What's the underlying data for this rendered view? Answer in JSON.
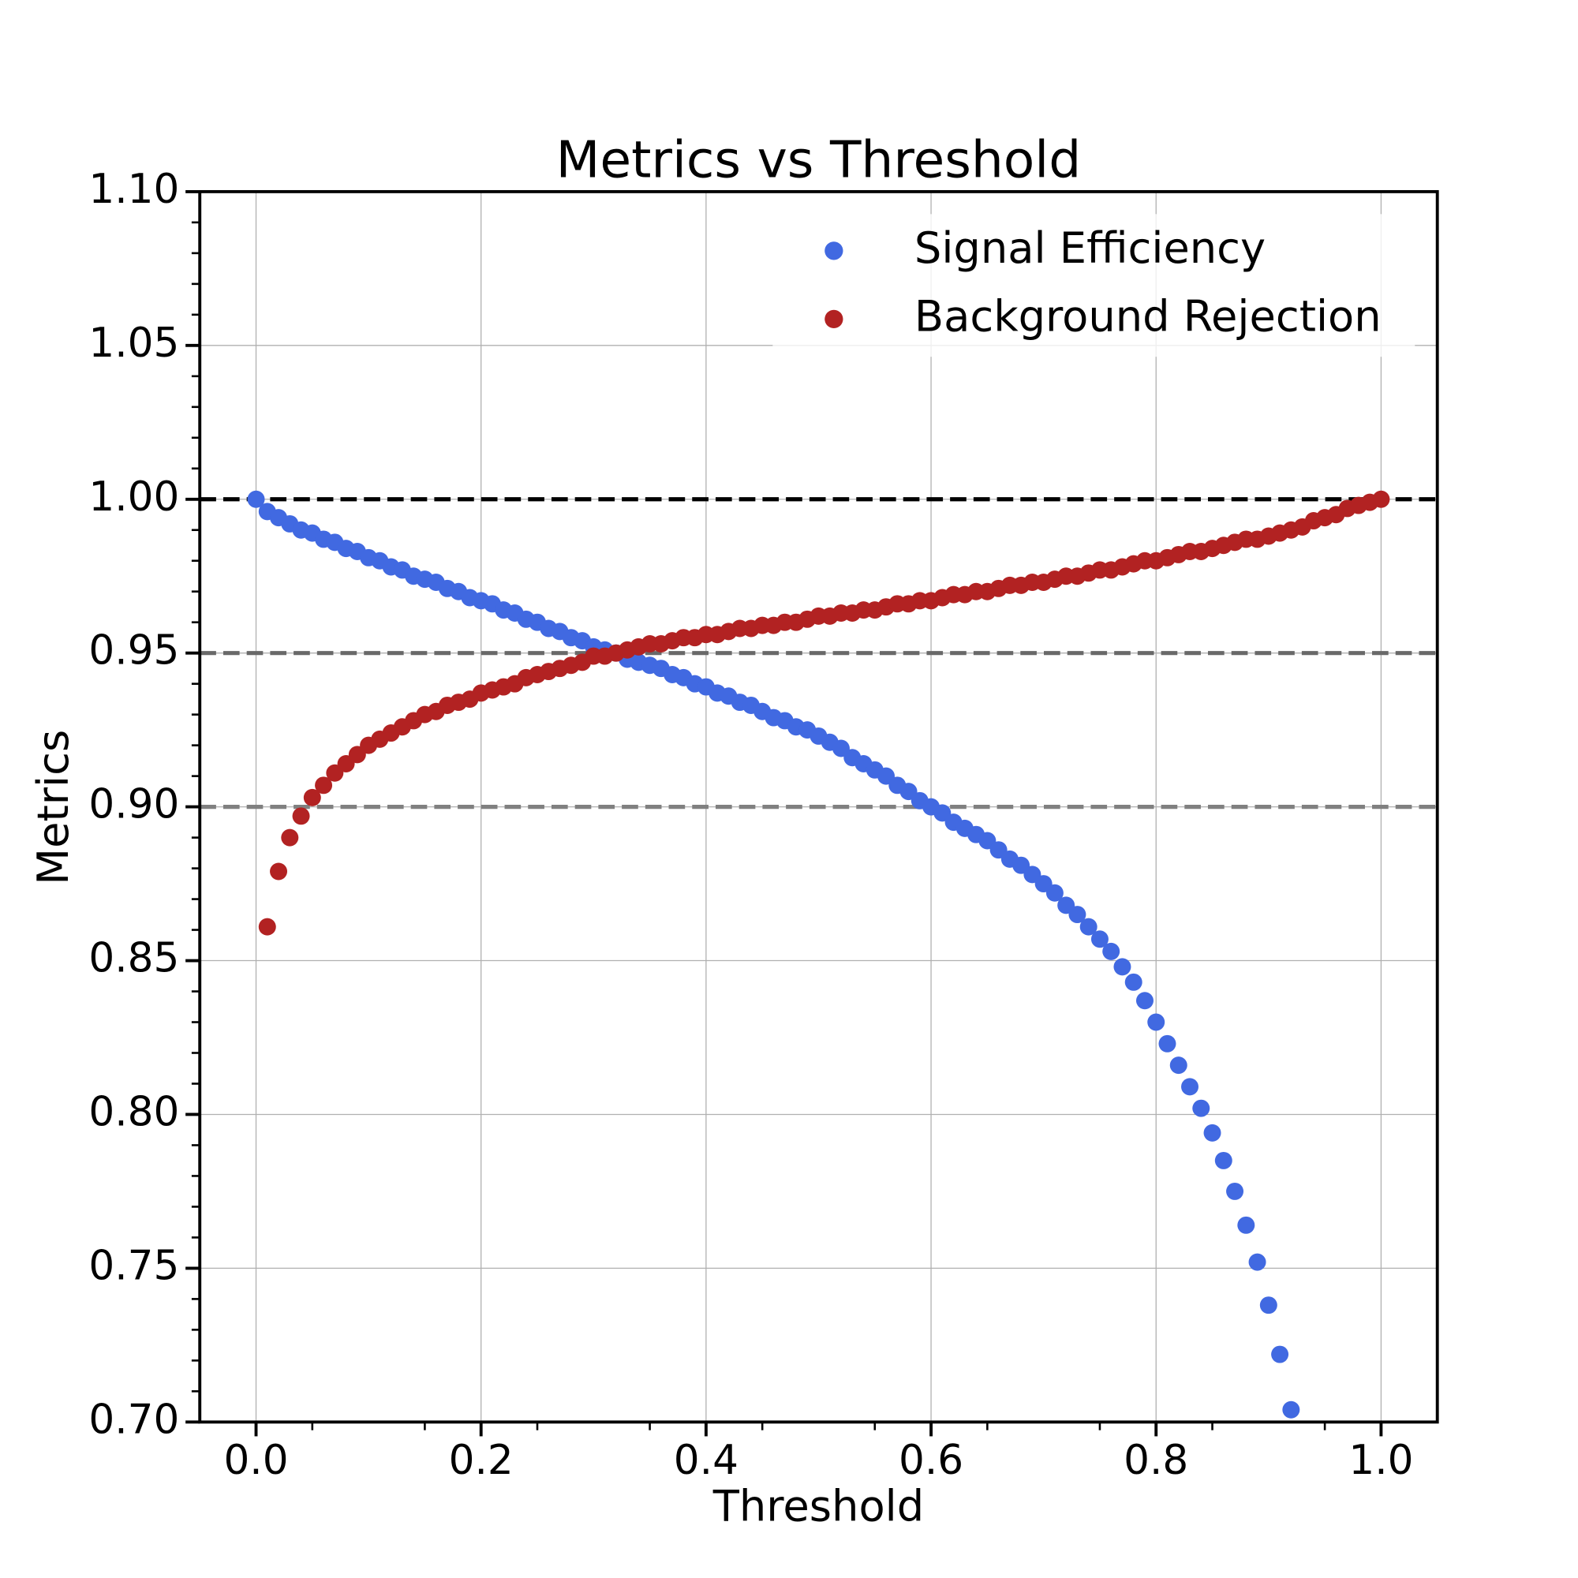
{
  "chart_data": {
    "type": "scatter",
    "title": "Metrics vs Threshold",
    "x_label": "Threshold",
    "y_label": "Metrics",
    "xlim": [
      -0.05,
      1.05
    ],
    "ylim": [
      0.7,
      1.1
    ],
    "xticks": [
      {
        "value": 0,
        "label": "0.0"
      },
      {
        "value": 0.2,
        "label": "0.2"
      },
      {
        "value": 0.4,
        "label": "0.4"
      },
      {
        "value": 0.6,
        "label": "0.6"
      },
      {
        "value": 0.8,
        "label": "0.8"
      },
      {
        "value": 1,
        "label": "1.0"
      }
    ],
    "yticks": [
      {
        "value": 0.7,
        "label": "0.70"
      },
      {
        "value": 0.75,
        "label": "0.75"
      },
      {
        "value": 0.8,
        "label": "0.80"
      },
      {
        "value": 0.85,
        "label": "0.85"
      },
      {
        "value": 0.9,
        "label": "0.90"
      },
      {
        "value": 0.95,
        "label": "0.95"
      },
      {
        "value": 1,
        "label": "1.00"
      },
      {
        "value": 1.05,
        "label": "1.05"
      },
      {
        "value": 1.1,
        "label": "1.10"
      }
    ],
    "xminorticks": [
      0.05,
      0.15,
      0.25,
      0.35,
      0.45,
      0.55,
      0.65,
      0.75,
      0.85,
      0.95
    ],
    "yminorticks": [
      0.71,
      0.72,
      0.73,
      0.74,
      0.76,
      0.77,
      0.78,
      0.79,
      0.81,
      0.82,
      0.83,
      0.84,
      0.86,
      0.87,
      0.88,
      0.89,
      0.91,
      0.92,
      0.93,
      0.94,
      0.96,
      0.97,
      0.98,
      0.99,
      1.01,
      1.02,
      1.03,
      1.04,
      1.06,
      1.07,
      1.08,
      1.09
    ],
    "grid": true,
    "legend": "upper right",
    "hlines": [
      {
        "value": 1.0,
        "color": "#000000"
      },
      {
        "value": 0.95,
        "color": "#696969"
      },
      {
        "value": 0.9,
        "color": "#808080"
      }
    ],
    "series": [
      {
        "name": "Signal Efficiency",
        "color": "#4169e1",
        "x": [
          0,
          0.01,
          0.02,
          0.03,
          0.04,
          0.05,
          0.06,
          0.07,
          0.08,
          0.09,
          0.1,
          0.11,
          0.12,
          0.13,
          0.14,
          0.15,
          0.16,
          0.17,
          0.18,
          0.19,
          0.2,
          0.21,
          0.22,
          0.23,
          0.24,
          0.25,
          0.26,
          0.27,
          0.28,
          0.29,
          0.3,
          0.31,
          0.32,
          0.33,
          0.34,
          0.35,
          0.36,
          0.37,
          0.38,
          0.39,
          0.4,
          0.41,
          0.42,
          0.43,
          0.44,
          0.45,
          0.46,
          0.47,
          0.48,
          0.49,
          0.5,
          0.51,
          0.52,
          0.53,
          0.54,
          0.55,
          0.56,
          0.57,
          0.58,
          0.59,
          0.6,
          0.61,
          0.62,
          0.63,
          0.64,
          0.65,
          0.66,
          0.67,
          0.68,
          0.69,
          0.7,
          0.71,
          0.72,
          0.73,
          0.74,
          0.75,
          0.76,
          0.77,
          0.78,
          0.79,
          0.8,
          0.81,
          0.82,
          0.83,
          0.84,
          0.85,
          0.86,
          0.87,
          0.88,
          0.89,
          0.9,
          0.91,
          0.92
        ],
        "values": [
          1.0,
          0.996,
          0.994,
          0.992,
          0.99,
          0.989,
          0.987,
          0.986,
          0.984,
          0.983,
          0.981,
          0.98,
          0.978,
          0.977,
          0.975,
          0.974,
          0.973,
          0.971,
          0.97,
          0.968,
          0.967,
          0.966,
          0.964,
          0.963,
          0.961,
          0.96,
          0.958,
          0.957,
          0.955,
          0.954,
          0.952,
          0.951,
          0.95,
          0.948,
          0.947,
          0.946,
          0.945,
          0.943,
          0.942,
          0.94,
          0.939,
          0.937,
          0.936,
          0.934,
          0.933,
          0.931,
          0.929,
          0.928,
          0.926,
          0.925,
          0.923,
          0.921,
          0.919,
          0.916,
          0.914,
          0.912,
          0.91,
          0.907,
          0.905,
          0.902,
          0.9,
          0.898,
          0.895,
          0.893,
          0.891,
          0.889,
          0.886,
          0.883,
          0.881,
          0.878,
          0.875,
          0.872,
          0.868,
          0.865,
          0.861,
          0.857,
          0.853,
          0.848,
          0.843,
          0.837,
          0.83,
          0.823,
          0.816,
          0.809,
          0.802,
          0.794,
          0.785,
          0.775,
          0.764,
          0.752,
          0.738,
          0.722,
          0.704
        ]
      },
      {
        "name": "Background Rejection",
        "color": "#b22222",
        "x": [
          0.01,
          0.02,
          0.03,
          0.04,
          0.05,
          0.06,
          0.07,
          0.08,
          0.09,
          0.1,
          0.11,
          0.12,
          0.13,
          0.14,
          0.15,
          0.16,
          0.17,
          0.18,
          0.19,
          0.2,
          0.21,
          0.22,
          0.23,
          0.24,
          0.25,
          0.26,
          0.27,
          0.28,
          0.29,
          0.3,
          0.31,
          0.32,
          0.33,
          0.34,
          0.35,
          0.36,
          0.37,
          0.38,
          0.39,
          0.4,
          0.41,
          0.42,
          0.43,
          0.44,
          0.45,
          0.46,
          0.47,
          0.48,
          0.49,
          0.5,
          0.51,
          0.52,
          0.53,
          0.54,
          0.55,
          0.56,
          0.57,
          0.58,
          0.59,
          0.6,
          0.61,
          0.62,
          0.63,
          0.64,
          0.65,
          0.66,
          0.67,
          0.68,
          0.69,
          0.7,
          0.71,
          0.72,
          0.73,
          0.74,
          0.75,
          0.76,
          0.77,
          0.78,
          0.79,
          0.8,
          0.81,
          0.82,
          0.83,
          0.84,
          0.85,
          0.86,
          0.87,
          0.88,
          0.89,
          0.9,
          0.91,
          0.92,
          0.93,
          0.94,
          0.95,
          0.96,
          0.97,
          0.98,
          0.99,
          1.0
        ],
        "values": [
          0.861,
          0.879,
          0.89,
          0.897,
          0.903,
          0.907,
          0.911,
          0.914,
          0.917,
          0.92,
          0.922,
          0.924,
          0.926,
          0.928,
          0.93,
          0.931,
          0.933,
          0.934,
          0.935,
          0.937,
          0.938,
          0.939,
          0.94,
          0.942,
          0.943,
          0.944,
          0.945,
          0.946,
          0.947,
          0.949,
          0.949,
          0.95,
          0.951,
          0.952,
          0.953,
          0.953,
          0.954,
          0.955,
          0.955,
          0.956,
          0.956,
          0.957,
          0.958,
          0.958,
          0.959,
          0.959,
          0.96,
          0.96,
          0.961,
          0.962,
          0.962,
          0.963,
          0.963,
          0.964,
          0.964,
          0.965,
          0.966,
          0.966,
          0.967,
          0.967,
          0.968,
          0.969,
          0.969,
          0.97,
          0.97,
          0.971,
          0.972,
          0.972,
          0.973,
          0.973,
          0.974,
          0.975,
          0.975,
          0.976,
          0.977,
          0.977,
          0.978,
          0.979,
          0.98,
          0.98,
          0.981,
          0.982,
          0.983,
          0.983,
          0.984,
          0.985,
          0.986,
          0.987,
          0.987,
          0.988,
          0.989,
          0.99,
          0.991,
          0.993,
          0.994,
          0.995,
          0.997,
          0.998,
          0.999,
          1.0
        ]
      }
    ]
  }
}
